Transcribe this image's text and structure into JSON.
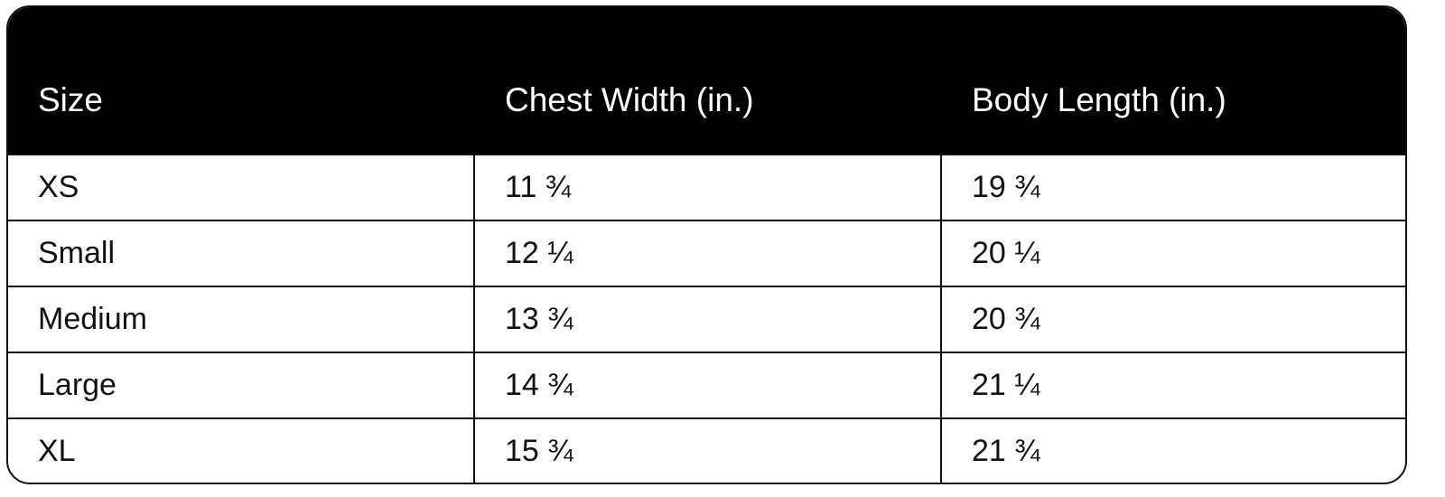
{
  "table": {
    "headers": [
      "Size",
      "Chest Width (in.)",
      "Body Length (in.)"
    ],
    "rows": [
      [
        "XS",
        "11 ¾",
        "19 ¾"
      ],
      [
        "Small",
        "12 ¼",
        "20 ¼"
      ],
      [
        "Medium",
        "13 ¾",
        "20 ¾"
      ],
      [
        "Large",
        "14 ¾",
        "21 ¼"
      ],
      [
        "XL",
        "15 ¾",
        "21 ¾"
      ]
    ]
  },
  "colors": {
    "header_bg": "#000000",
    "header_text": "#ffffff",
    "border": "#111111"
  }
}
